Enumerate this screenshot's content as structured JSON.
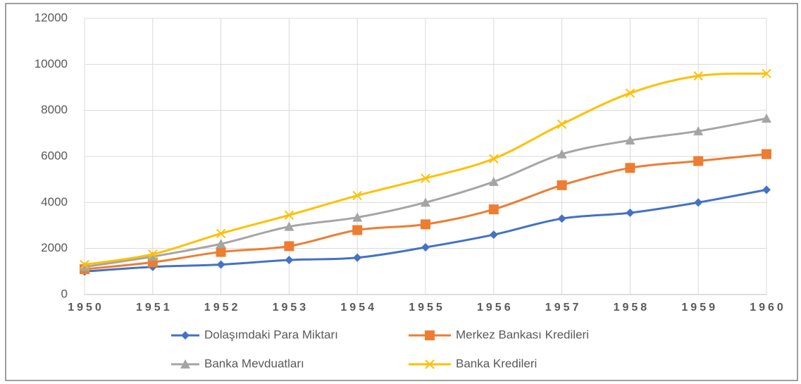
{
  "chart_data": {
    "type": "line",
    "x": [
      1950,
      1951,
      1952,
      1953,
      1954,
      1955,
      1956,
      1957,
      1958,
      1959,
      1960
    ],
    "xlim": [
      1950,
      1960
    ],
    "xticks": [
      1950,
      1951,
      1952,
      1953,
      1954,
      1955,
      1956,
      1957,
      1958,
      1959,
      1960
    ],
    "ylim": [
      0,
      12000
    ],
    "yticks": [
      0,
      2000,
      4000,
      6000,
      8000,
      10000,
      12000
    ],
    "grid": true,
    "legend": "bottom",
    "series": [
      {
        "name": "Dolaşımdaki Para Miktarı",
        "color": "#4472c4",
        "marker": "diamond",
        "values": [
          1000,
          1200,
          1300,
          1500,
          1600,
          2050,
          2600,
          3300,
          3550,
          4000,
          4550
        ]
      },
      {
        "name": "Merkez Bankası Kredileri",
        "color": "#ed7d31",
        "marker": "square",
        "values": [
          1100,
          1400,
          1850,
          2100,
          2800,
          3050,
          3700,
          4750,
          5500,
          5800,
          6100
        ]
      },
      {
        "name": "Banka Mevduatları",
        "color": "#a5a5a5",
        "marker": "triangle",
        "values": [
          1200,
          1650,
          2200,
          2950,
          3350,
          4000,
          4900,
          6100,
          6700,
          7100,
          7650
        ]
      },
      {
        "name": "Banka Kredileri",
        "color": "#ffc000",
        "marker": "x",
        "values": [
          1300,
          1750,
          2650,
          3450,
          4300,
          5050,
          5900,
          7400,
          8750,
          9500,
          9600
        ]
      }
    ]
  }
}
